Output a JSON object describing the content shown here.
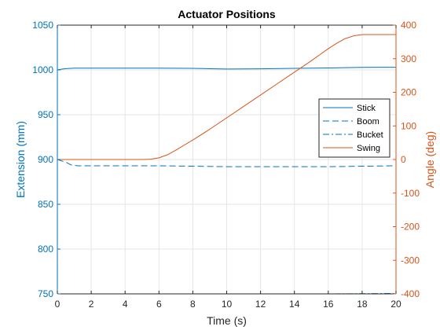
{
  "chart_data": {
    "type": "line",
    "title": "Actuator Positions",
    "xlabel": "Time (s)",
    "ylabel_left": "Extension (mm)",
    "ylabel_right": "Angle (deg)",
    "xlim": [
      0,
      20
    ],
    "ylim_left": [
      750,
      1050
    ],
    "ylim_right": [
      -400,
      400
    ],
    "x_ticks": [
      0,
      2,
      4,
      6,
      8,
      10,
      12,
      14,
      16,
      18,
      20
    ],
    "y_left_ticks": [
      750,
      800,
      850,
      900,
      950,
      1000,
      1050
    ],
    "y_right_ticks": [
      -400,
      -300,
      -200,
      -100,
      0,
      100,
      200,
      300,
      400
    ],
    "grid": true,
    "legend_position": "right",
    "colors": {
      "left_axis": "#0072BD",
      "right_axis": "#D95319",
      "grid": "#e6e6e6",
      "axes": "#262626"
    },
    "series": [
      {
        "name": "Stick",
        "axis": "left",
        "style": "solid",
        "x": [
          0,
          0.3,
          0.6,
          1,
          2,
          4,
          6,
          8,
          9,
          10,
          12,
          14,
          16,
          18,
          20
        ],
        "y": [
          1000,
          1001,
          1001.5,
          1002,
          1002,
          1002,
          1002,
          1001.8,
          1001.3,
          1001,
          1001.2,
          1001.8,
          1002.2,
          1002.8,
          1003
        ]
      },
      {
        "name": "Boom",
        "axis": "left",
        "style": "dashed",
        "x": [
          0,
          0.5,
          0.8,
          1.2,
          2,
          4,
          6,
          8,
          10,
          12,
          14,
          16,
          18,
          20
        ],
        "y": [
          900,
          897,
          894,
          893,
          893,
          893,
          893,
          892.5,
          892,
          892,
          892,
          892,
          892.5,
          893
        ]
      },
      {
        "name": "Bucket",
        "axis": "left",
        "style": "dashdot",
        "x": [
          0,
          2,
          4,
          6,
          8,
          10,
          12,
          14,
          16,
          18,
          20
        ],
        "y": [
          750,
          750,
          750,
          750,
          750,
          750,
          750,
          750,
          750,
          750.2,
          750.5
        ]
      },
      {
        "name": "Swing",
        "axis": "right",
        "style": "solid",
        "x": [
          0,
          1,
          2,
          3,
          4,
          5,
          5.5,
          6,
          6.5,
          7,
          7.5,
          8,
          9,
          10,
          11,
          12,
          13,
          14,
          15,
          15.5,
          16,
          16.5,
          17,
          17.5,
          18,
          19,
          20
        ],
        "y": [
          0,
          0,
          0,
          0,
          0,
          0,
          1,
          5,
          14,
          28,
          43,
          58,
          90,
          124,
          158,
          192,
          226,
          260,
          294,
          312,
          330,
          346,
          360,
          368,
          372,
          372,
          372
        ]
      }
    ]
  }
}
